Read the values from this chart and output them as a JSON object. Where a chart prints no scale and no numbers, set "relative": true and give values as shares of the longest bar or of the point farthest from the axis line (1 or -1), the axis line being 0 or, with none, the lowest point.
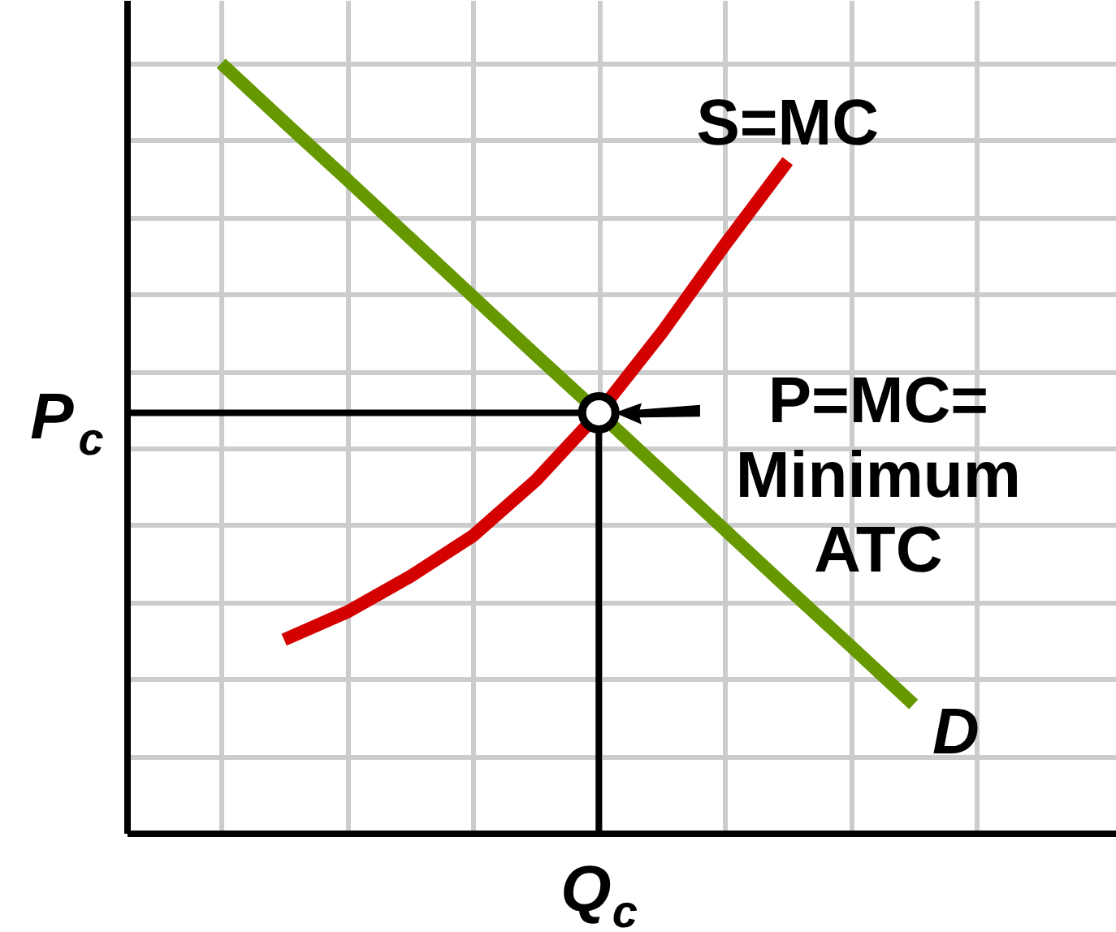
{
  "chart_data": {
    "type": "line",
    "relative": true,
    "categories": [
      null,
      null,
      null,
      null,
      null,
      null,
      null,
      null,
      null,
      null,
      null,
      null,
      null,
      null,
      null
    ],
    "grid": true,
    "marker": "none",
    "line_style": "solid",
    "series": [
      {
        "name": "S=MC",
        "color": "#d40000",
        "values": [
          null,
          null,
          0.251,
          0.287,
          0.333,
          0.386,
          0.458,
          0.546,
          0.65,
          0.764,
          0.873,
          null,
          null,
          null,
          null
        ]
      },
      {
        "name": "D",
        "color": "#669900",
        "values": [
          null,
          1.0,
          0.924,
          0.849,
          0.773,
          0.697,
          0.621,
          0.546,
          0.47,
          0.394,
          0.318,
          0.243,
          0.167,
          null,
          null
        ]
      }
    ],
    "ref_lines": [
      {
        "axis": "y",
        "value": 0.546,
        "label": "P$_{c}$"
      },
      {
        "axis": "x",
        "value": null,
        "label": "Q$_{c}$"
      }
    ],
    "annotations": [
      "P=MC=\nMinimum\nATC"
    ]
  }
}
